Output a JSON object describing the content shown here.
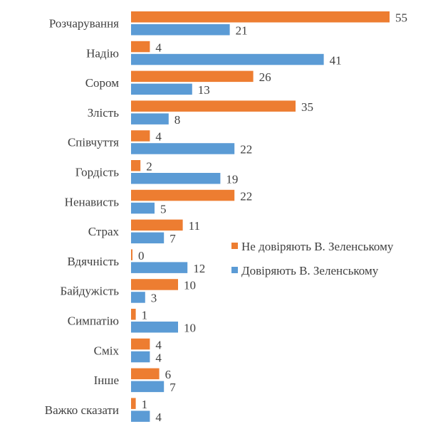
{
  "chart_data": {
    "type": "bar",
    "orientation": "horizontal",
    "categories": [
      "Розчарування",
      "Надію",
      "Сором",
      "Злість",
      "Співчуття",
      "Гордість",
      "Ненависть",
      "Страх",
      "Вдячність",
      "Байдужість",
      "Симпатію",
      "Сміх",
      "Інше",
      "Важко сказати"
    ],
    "series": [
      {
        "name": "Не довіряють В. Зеленському",
        "color": "#ED7D31",
        "values": [
          55,
          4,
          26,
          35,
          4,
          2,
          22,
          11,
          0,
          10,
          1,
          4,
          6,
          1
        ]
      },
      {
        "name": "Довіряють В. Зеленському",
        "color": "#5B9BD5",
        "values": [
          21,
          41,
          13,
          8,
          22,
          19,
          5,
          7,
          12,
          3,
          10,
          4,
          7,
          4
        ]
      }
    ],
    "data_labels": true,
    "legend": "right",
    "grid": false,
    "xlim": [
      0,
      55
    ]
  }
}
